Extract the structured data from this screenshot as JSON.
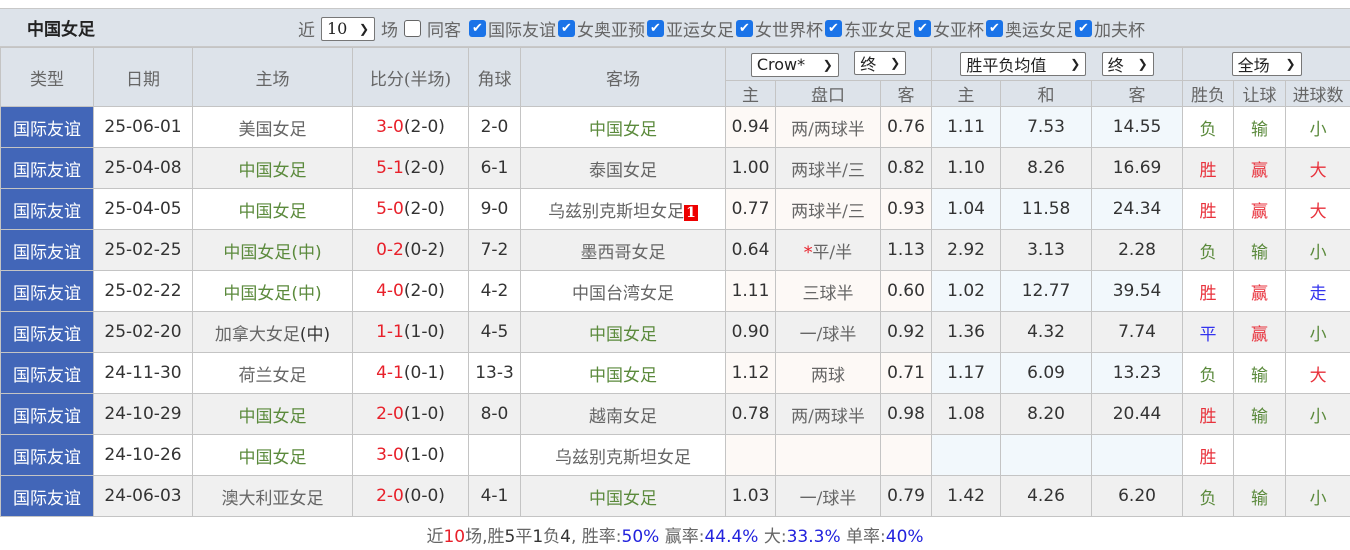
{
  "title": "中国女足",
  "filters": {
    "recent_prefix": "近",
    "recent_count": "10",
    "recent_suffix": "场",
    "same_venue": {
      "label": "同客",
      "checked": false
    },
    "competitions": [
      {
        "label": "国际友谊",
        "checked": true
      },
      {
        "label": "女奥亚预",
        "checked": true
      },
      {
        "label": "亚运女足",
        "checked": true
      },
      {
        "label": "女世界杯",
        "checked": true
      },
      {
        "label": "东亚女足",
        "checked": true
      },
      {
        "label": "女亚杯",
        "checked": true
      },
      {
        "label": "奥运女足",
        "checked": true
      },
      {
        "label": "加夫杯",
        "checked": true
      }
    ]
  },
  "headers": {
    "type": "类型",
    "date": "日期",
    "home": "主场",
    "score": "比分(半场)",
    "corner": "角球",
    "away": "客场",
    "handicap_company": "Crow*",
    "handicap_stage": "终",
    "odds_type": "胜平负均值",
    "odds_stage": "终",
    "period": "全场",
    "h_home": "主",
    "h_line": "盘口",
    "h_away": "客",
    "o_home": "主",
    "o_draw": "和",
    "o_away": "客",
    "r_wl": "胜负",
    "r_hc": "让球",
    "r_ou": "进球数"
  },
  "rows": [
    {
      "type": "国际友谊",
      "date": "25-06-01",
      "home": "美国女足",
      "home_tag": "",
      "home_cn": false,
      "ft": "3-0",
      "ht": "(2-0)",
      "corner": "2-0",
      "away": "中国女足",
      "away_tag": "",
      "away_cn": true,
      "badge": "",
      "h1": "0.94",
      "line": "两/两球半",
      "star": "",
      "h2": "0.76",
      "o1": "1.11",
      "o2": "7.53",
      "o3": "14.55",
      "wl": "负",
      "hc": "输",
      "ou": "小"
    },
    {
      "type": "国际友谊",
      "date": "25-04-08",
      "home": "中国女足",
      "home_tag": "",
      "home_cn": true,
      "ft": "5-1",
      "ht": "(2-0)",
      "corner": "6-1",
      "away": "泰国女足",
      "away_tag": "",
      "away_cn": false,
      "badge": "",
      "h1": "1.00",
      "line": "两球半/三",
      "star": "",
      "h2": "0.82",
      "o1": "1.10",
      "o2": "8.26",
      "o3": "16.69",
      "wl": "胜",
      "hc": "赢",
      "ou": "大"
    },
    {
      "type": "国际友谊",
      "date": "25-04-05",
      "home": "中国女足",
      "home_tag": "",
      "home_cn": true,
      "ft": "5-0",
      "ht": "(2-0)",
      "corner": "9-0",
      "away": "乌兹别克斯坦女足",
      "away_tag": "",
      "away_cn": false,
      "badge": "1",
      "h1": "0.77",
      "line": "两球半/三",
      "star": "",
      "h2": "0.93",
      "o1": "1.04",
      "o2": "11.58",
      "o3": "24.34",
      "wl": "胜",
      "hc": "赢",
      "ou": "大"
    },
    {
      "type": "国际友谊",
      "date": "25-02-25",
      "home": "中国女足",
      "home_tag": "(中)",
      "home_cn": true,
      "ft": "0-2",
      "ht": "(0-2)",
      "corner": "7-2",
      "away": "墨西哥女足",
      "away_tag": "",
      "away_cn": false,
      "badge": "",
      "h1": "0.64",
      "line": "平/半",
      "star": "*",
      "h2": "1.13",
      "o1": "2.92",
      "o2": "3.13",
      "o3": "2.28",
      "wl": "负",
      "hc": "输",
      "ou": "小"
    },
    {
      "type": "国际友谊",
      "date": "25-02-22",
      "home": "中国女足",
      "home_tag": "(中)",
      "home_cn": true,
      "ft": "4-0",
      "ht": "(2-0)",
      "corner": "4-2",
      "away": "中国台湾女足",
      "away_tag": "",
      "away_cn": false,
      "badge": "",
      "h1": "1.11",
      "line": "三球半",
      "star": "",
      "h2": "0.60",
      "o1": "1.02",
      "o2": "12.77",
      "o3": "39.54",
      "wl": "胜",
      "hc": "赢",
      "ou": "走"
    },
    {
      "type": "国际友谊",
      "date": "25-02-20",
      "home": "加拿大女足",
      "home_tag": "(中)",
      "home_cn": false,
      "ft": "1-1",
      "ht": "(1-0)",
      "corner": "4-5",
      "away": "中国女足",
      "away_tag": "",
      "away_cn": true,
      "badge": "",
      "h1": "0.90",
      "line": "一/球半",
      "star": "",
      "h2": "0.92",
      "o1": "1.36",
      "o2": "4.32",
      "o3": "7.74",
      "wl": "平",
      "hc": "赢",
      "ou": "小"
    },
    {
      "type": "国际友谊",
      "date": "24-11-30",
      "home": "荷兰女足",
      "home_tag": "",
      "home_cn": false,
      "ft": "4-1",
      "ht": "(0-1)",
      "corner": "13-3",
      "away": "中国女足",
      "away_tag": "",
      "away_cn": true,
      "badge": "",
      "h1": "1.12",
      "line": "两球",
      "star": "",
      "h2": "0.71",
      "o1": "1.17",
      "o2": "6.09",
      "o3": "13.23",
      "wl": "负",
      "hc": "输",
      "ou": "大"
    },
    {
      "type": "国际友谊",
      "date": "24-10-29",
      "home": "中国女足",
      "home_tag": "",
      "home_cn": true,
      "ft": "2-0",
      "ht": "(1-0)",
      "corner": "8-0",
      "away": "越南女足",
      "away_tag": "",
      "away_cn": false,
      "badge": "",
      "h1": "0.78",
      "line": "两/两球半",
      "star": "",
      "h2": "0.98",
      "o1": "1.08",
      "o2": "8.20",
      "o3": "20.44",
      "wl": "胜",
      "hc": "输",
      "ou": "小"
    },
    {
      "type": "国际友谊",
      "date": "24-10-26",
      "home": "中国女足",
      "home_tag": "",
      "home_cn": true,
      "ft": "3-0",
      "ht": "(1-0)",
      "corner": "",
      "away": "乌兹别克斯坦女足",
      "away_tag": "",
      "away_cn": false,
      "badge": "",
      "h1": "",
      "line": "",
      "star": "",
      "h2": "",
      "o1": "",
      "o2": "",
      "o3": "",
      "wl": "胜",
      "hc": "",
      "ou": ""
    },
    {
      "type": "国际友谊",
      "date": "24-06-03",
      "home": "澳大利亚女足",
      "home_tag": "",
      "home_cn": false,
      "ft": "2-0",
      "ht": "(0-0)",
      "corner": "4-1",
      "away": "中国女足",
      "away_tag": "",
      "away_cn": true,
      "badge": "",
      "h1": "1.03",
      "line": "一/球半",
      "star": "",
      "h2": "0.79",
      "o1": "1.42",
      "o2": "4.26",
      "o3": "6.20",
      "wl": "负",
      "hc": "输",
      "ou": "小"
    }
  ],
  "summary": {
    "p1": "近",
    "count": "10",
    "p2": "场,胜",
    "wins": "5",
    "p3": "平",
    "draws": "1",
    "p4": "负",
    "losses": "4",
    "p5": ", 胜率:",
    "win_rate": "50%",
    "p6": " 赢率:",
    "hc_rate": "44.4%",
    "p7": " 大:",
    "over_rate": "33.3%",
    "p8": " 单率:",
    "odd_rate": "40%"
  },
  "colors": {
    "type_bg": "#4266b8",
    "win": "#e8323c",
    "loss": "#5b8a3c",
    "draw": "#3333ee",
    "accent": "#1a73e8"
  }
}
